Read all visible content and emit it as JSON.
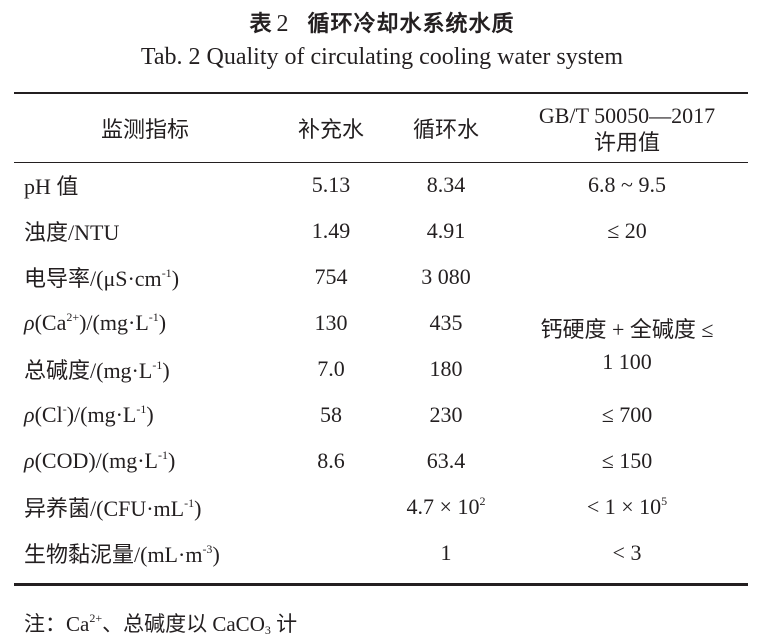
{
  "title": {
    "prefix": "表",
    "number": "2",
    "text": "循环冷却水系统水质"
  },
  "subtitle": "Tab. 2   Quality of circulating cooling water system",
  "headers": [
    "监测指标",
    "补充水",
    "循环水",
    "GB/T 50050—2017",
    "许用值"
  ],
  "rows": [
    {
      "label": [
        {
          "t": "pH 值"
        }
      ],
      "makeup": "5.13",
      "circ": [
        {
          "t": "8.34"
        }
      ],
      "limit": [
        {
          "t": "6.8 ~ 9.5"
        }
      ]
    },
    {
      "label": [
        {
          "t": "浊度/NTU"
        }
      ],
      "makeup": "1.49",
      "circ": [
        {
          "t": "4.91"
        }
      ],
      "limit": [
        {
          "t": "≤ 20"
        }
      ]
    },
    {
      "label": [
        {
          "t": "电导率/(μS·cm"
        },
        {
          "sup": "-1"
        },
        {
          "t": ")"
        }
      ],
      "makeup": "754",
      "circ": [
        {
          "t": "3 080"
        }
      ],
      "limit": []
    },
    {
      "label": [
        {
          "i": "ρ"
        },
        {
          "t": "(Ca"
        },
        {
          "sup": "2+"
        },
        {
          "t": ")/(mg·L"
        },
        {
          "sup": "-1"
        },
        {
          "t": ")"
        }
      ],
      "makeup": "130",
      "circ": [
        {
          "t": "435"
        }
      ],
      "limit": "merged"
    },
    {
      "label": [
        {
          "t": "总碱度/(mg·L"
        },
        {
          "sup": "-1"
        },
        {
          "t": ")"
        }
      ],
      "makeup": "7.0",
      "circ": [
        {
          "t": "180"
        }
      ],
      "limit": "merged"
    },
    {
      "label": [
        {
          "i": "ρ"
        },
        {
          "t": "(Cl"
        },
        {
          "sup": "-"
        },
        {
          "t": ")/(mg·L"
        },
        {
          "sup": "-1"
        },
        {
          "t": ")"
        }
      ],
      "makeup": "58",
      "circ": [
        {
          "t": "230"
        }
      ],
      "limit": [
        {
          "t": "≤ 700"
        }
      ]
    },
    {
      "label": [
        {
          "i": "ρ"
        },
        {
          "t": "(COD)/(mg·L"
        },
        {
          "sup": "-1"
        },
        {
          "t": ")"
        }
      ],
      "makeup": "8.6",
      "circ": [
        {
          "t": "63.4"
        }
      ],
      "limit": [
        {
          "t": "≤ 150"
        }
      ]
    },
    {
      "label": [
        {
          "t": "异养菌/(CFU·mL"
        },
        {
          "sup": "-1"
        },
        {
          "t": ")"
        }
      ],
      "makeup": "",
      "circ": [
        {
          "t": "4.7 × 10"
        },
        {
          "sup": "2"
        }
      ],
      "limit": [
        {
          "t": "< 1 × 10"
        },
        {
          "sup": "5"
        }
      ]
    },
    {
      "label": [
        {
          "t": "生物黏泥量/(mL·m"
        },
        {
          "sup": "-3"
        },
        {
          "t": ")"
        }
      ],
      "makeup": "",
      "circ": [
        {
          "t": "1"
        }
      ],
      "limit": [
        {
          "t": "< 3"
        }
      ]
    }
  ],
  "merged_limit": {
    "line1": "钙硬度 + 全碱度 ≤",
    "line2": "1 100"
  },
  "note": [
    {
      "t": "注：Ca"
    },
    {
      "sup": "2+"
    },
    {
      "t": "、总碱度以 CaCO"
    },
    {
      "sub": "3"
    },
    {
      "t": " 计"
    }
  ]
}
